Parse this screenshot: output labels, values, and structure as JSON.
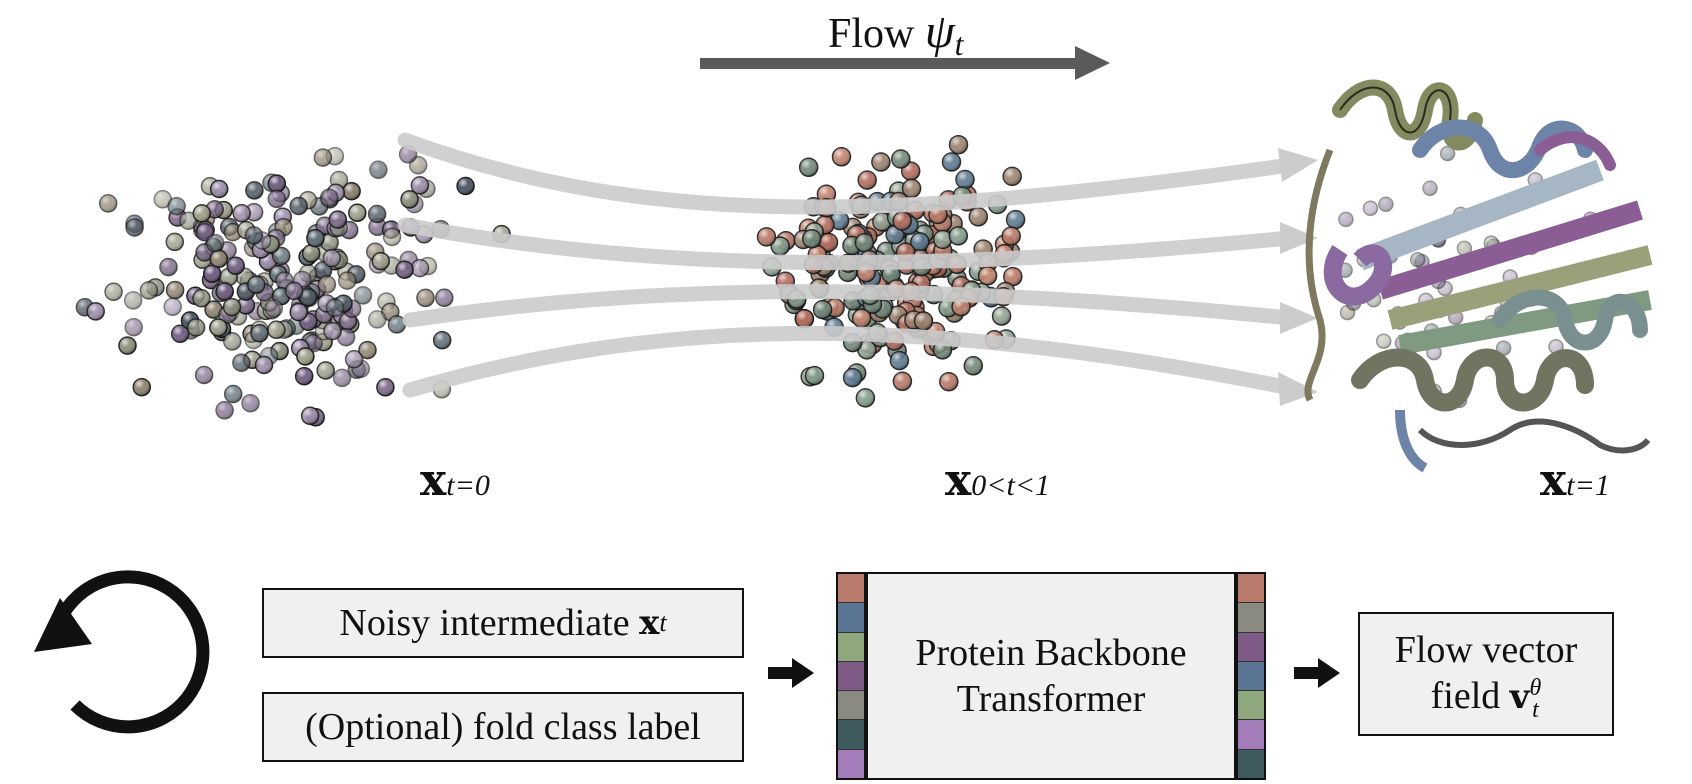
{
  "title": {
    "prefix": "Flow ",
    "symbol": "ψ",
    "sub": "t"
  },
  "labels": {
    "x0": {
      "base": "x",
      "sub": "t=0"
    },
    "xmid": {
      "base": "x",
      "sub": "0<t<1"
    },
    "x1": {
      "base": "x",
      "sub": "t=1"
    }
  },
  "inputs": {
    "noisy_prefix": "Noisy intermediate ",
    "noisy_base": "x",
    "noisy_sub": "t",
    "fold": "(Optional) fold class label"
  },
  "model": {
    "line1": "Protein Backbone",
    "line2": "Transformer"
  },
  "output": {
    "line1": "Flow vector",
    "line2": "field ",
    "base": "v",
    "sub": "t",
    "sup": "θ"
  },
  "colors": {
    "strip_left": [
      "#b77a6b",
      "#5b7594",
      "#8ea77c",
      "#7e5b86",
      "#8a8a80",
      "#3f5a5e",
      "#a27dba"
    ],
    "strip_right": [
      "#b77a6b",
      "#8a8a80",
      "#7e5b86",
      "#5b7594",
      "#8ea77c",
      "#a27dba",
      "#3f5a5e"
    ],
    "noise_palette": [
      "#8a8f7a",
      "#6e5a7e",
      "#5f6e76",
      "#8b7f6a",
      "#7d6a8a",
      "#a0a08c",
      "#4a5560",
      "#9a8aa8"
    ],
    "mid_palette": [
      "#b87460",
      "#7f9a88",
      "#6e8474",
      "#c0806a",
      "#5a7890",
      "#9a7f6a",
      "#8fa090",
      "#b06858"
    ],
    "flow_arrows": "#cccccc",
    "top_arrow": "#5a5a5a"
  }
}
